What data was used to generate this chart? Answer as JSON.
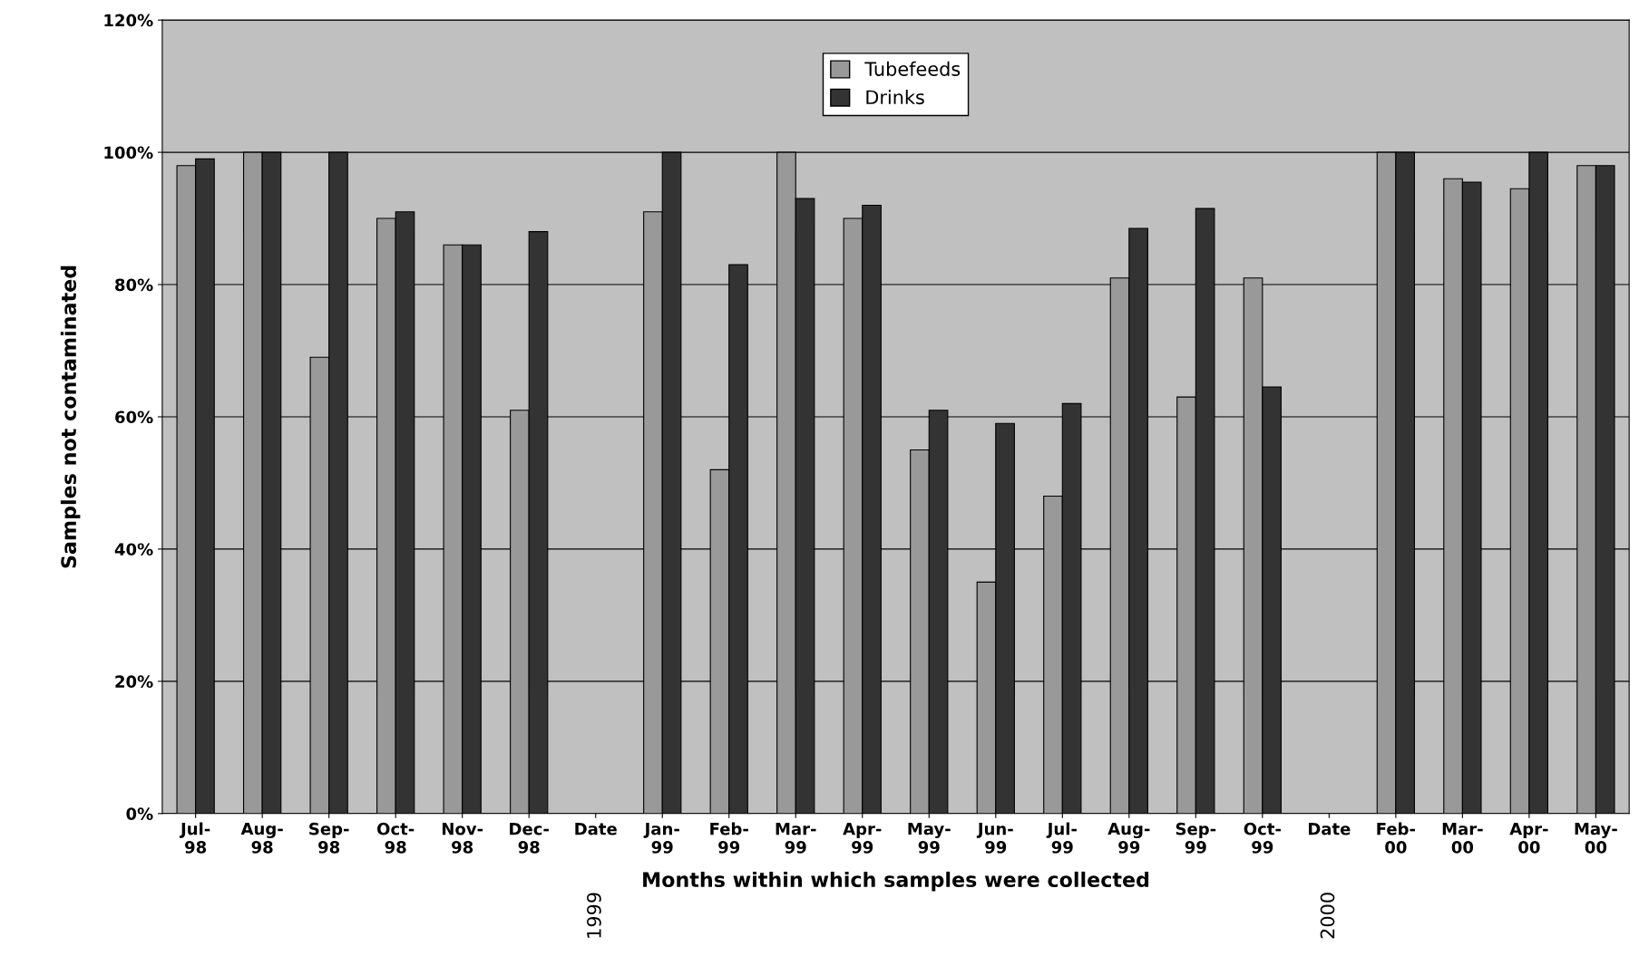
{
  "chart_data": {
    "type": "bar",
    "xlabel": "Months within which samples were collected",
    "ylabel": "Samples not contaminated",
    "categories": [
      "Jul-98",
      "Aug-98",
      "Sep-98",
      "Oct-98",
      "Nov-98",
      "Dec-98",
      "Date",
      "Jan-99",
      "Feb-99",
      "Mar-99",
      "Apr-99",
      "May-99",
      "Jun-99",
      "Jul-99",
      "Aug-99",
      "Sep-99",
      "Oct-99",
      "Date",
      "Feb-00",
      "Mar-00",
      "Apr-00",
      "May-00"
    ],
    "series": [
      {
        "name": "Tubefeeds",
        "color": "#999999",
        "values": [
          98,
          100,
          69,
          90,
          86,
          61,
          null,
          91,
          52,
          100,
          90,
          55,
          35,
          48,
          81,
          63,
          81,
          null,
          100,
          96,
          94.5,
          98
        ]
      },
      {
        "name": "Drinks",
        "color": "#333333",
        "values": [
          99,
          100,
          100,
          91,
          86,
          88,
          null,
          100,
          83,
          93,
          92,
          61,
          59,
          62,
          88.5,
          91.5,
          64.5,
          null,
          100,
          95.5,
          100,
          98
        ]
      }
    ],
    "annotations": [
      "1999",
      "2000"
    ],
    "ylim": [
      0,
      120
    ],
    "yticks": [
      {
        "value": 0,
        "label": "0%"
      },
      {
        "value": 20,
        "label": "20%"
      },
      {
        "value": 40,
        "label": "40%"
      },
      {
        "value": 60,
        "label": "60%"
      },
      {
        "value": 80,
        "label": "80%"
      },
      {
        "value": 100,
        "label": "100%"
      },
      {
        "value": 120,
        "label": "120%"
      }
    ],
    "grid": "y",
    "legend": "top"
  }
}
